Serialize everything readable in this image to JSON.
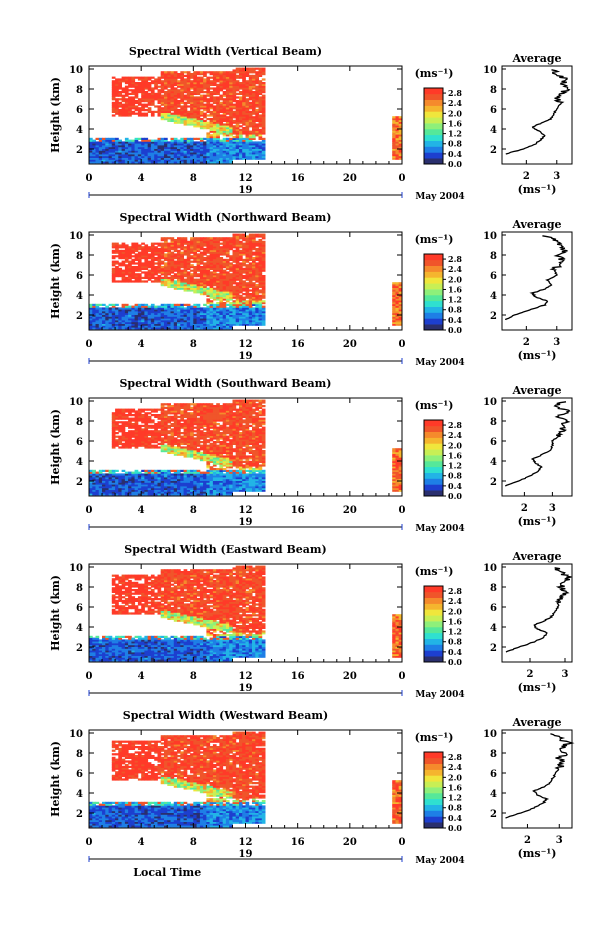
{
  "figure": {
    "colorbar_unit": "(ms⁻¹)",
    "colorbar_ticks": [
      "0.0",
      "0.4",
      "0.8",
      "1.2",
      "1.6",
      "2.0",
      "2.4",
      "2.8"
    ],
    "avg_title": "Average",
    "avg_xlabel": "(ms⁻¹)",
    "date_label": "May 2004",
    "x_axis_day": "19",
    "ylabel": "Height (km)",
    "xlabel_bottom": "Local Time",
    "colormap": [
      "#2a2f6e",
      "#1d3fcf",
      "#1e7fe6",
      "#22b4e6",
      "#2fe0d0",
      "#55e89a",
      "#8ef07a",
      "#c8ef55",
      "#f0e63c",
      "#f5b52e",
      "#f58a2c",
      "#f0552a",
      "#ff3a28"
    ]
  },
  "chart_data": [
    {
      "type": "heatmap",
      "title": "Spectral Width (Vertical Beam)",
      "xlabel": "",
      "ylabel": "Height (km)",
      "x_ticks": [
        "0",
        "4",
        "8",
        "12",
        "16",
        "20",
        "0"
      ],
      "xlim": [
        0,
        24
      ],
      "y_ticks": [
        "2",
        "4",
        "6",
        "8",
        "10"
      ],
      "ylim": [
        0.5,
        10.3
      ],
      "zlim": [
        0,
        3.0
      ],
      "average": {
        "title": "Average",
        "xlabel": "(ms⁻¹)",
        "x_ticks": [
          "2",
          "3"
        ],
        "xlim": [
          1.2,
          3.5
        ],
        "y_ticks": [
          "2",
          "4",
          "6",
          "8",
          "10"
        ],
        "ylim": [
          0.5,
          10.3
        ],
        "profile": [
          [
            1.3,
            1.5
          ],
          [
            1.9,
            2.0
          ],
          [
            2.3,
            2.5
          ],
          [
            2.5,
            3.0
          ],
          [
            2.6,
            3.4
          ],
          [
            2.4,
            3.8
          ],
          [
            2.2,
            4.2
          ],
          [
            2.5,
            4.6
          ],
          [
            2.8,
            5.0
          ],
          [
            2.9,
            5.5
          ],
          [
            3.0,
            6.0
          ],
          [
            3.1,
            6.5
          ],
          [
            3.0,
            7.0
          ],
          [
            3.2,
            7.5
          ],
          [
            3.3,
            8.0
          ],
          [
            3.2,
            8.5
          ],
          [
            3.3,
            9.0
          ],
          [
            3.0,
            9.5
          ],
          [
            2.9,
            10.0
          ]
        ]
      }
    },
    {
      "type": "heatmap",
      "title": "Spectral Width (Northward Beam)",
      "xlabel": "",
      "ylabel": "Height (km)",
      "x_ticks": [
        "0",
        "4",
        "8",
        "12",
        "16",
        "20",
        "0"
      ],
      "xlim": [
        0,
        24
      ],
      "y_ticks": [
        "2",
        "4",
        "6",
        "8",
        "10"
      ],
      "ylim": [
        0.5,
        10.3
      ],
      "zlim": [
        0,
        3.0
      ],
      "average": {
        "title": "Average",
        "xlabel": "(ms⁻¹)",
        "x_ticks": [
          "2",
          "3"
        ],
        "xlim": [
          1.2,
          3.5
        ],
        "y_ticks": [
          "2",
          "4",
          "6",
          "8",
          "10"
        ],
        "ylim": [
          0.5,
          10.3
        ],
        "profile": [
          [
            1.3,
            1.5
          ],
          [
            1.6,
            2.0
          ],
          [
            2.1,
            2.5
          ],
          [
            2.6,
            3.0
          ],
          [
            2.7,
            3.4
          ],
          [
            2.3,
            3.8
          ],
          [
            2.2,
            4.2
          ],
          [
            2.6,
            4.6
          ],
          [
            2.8,
            5.0
          ],
          [
            2.7,
            5.5
          ],
          [
            3.0,
            6.0
          ],
          [
            2.9,
            6.5
          ],
          [
            3.1,
            7.0
          ],
          [
            3.2,
            7.5
          ],
          [
            3.0,
            8.0
          ],
          [
            3.3,
            8.5
          ],
          [
            3.1,
            9.0
          ],
          [
            2.9,
            9.5
          ],
          [
            2.6,
            10.0
          ]
        ]
      }
    },
    {
      "type": "heatmap",
      "title": "Spectral Width (Southward Beam)",
      "xlabel": "",
      "ylabel": "Height (km)",
      "x_ticks": [
        "0",
        "4",
        "8",
        "12",
        "16",
        "20",
        "0"
      ],
      "xlim": [
        0,
        24
      ],
      "y_ticks": [
        "2",
        "4",
        "6",
        "8",
        "10"
      ],
      "ylim": [
        0.5,
        10.3
      ],
      "zlim": [
        0,
        3.0
      ],
      "average": {
        "title": "Average",
        "xlabel": "(ms⁻¹)",
        "x_ticks": [
          "2",
          "3"
        ],
        "xlim": [
          1.2,
          3.7
        ],
        "y_ticks": [
          "2",
          "4",
          "6",
          "8",
          "10"
        ],
        "ylim": [
          0.5,
          10.3
        ],
        "profile": [
          [
            1.3,
            1.5
          ],
          [
            1.8,
            2.0
          ],
          [
            2.2,
            2.5
          ],
          [
            2.5,
            3.0
          ],
          [
            2.6,
            3.4
          ],
          [
            2.4,
            3.8
          ],
          [
            2.3,
            4.2
          ],
          [
            2.6,
            4.6
          ],
          [
            2.9,
            5.0
          ],
          [
            3.0,
            5.5
          ],
          [
            3.0,
            6.0
          ],
          [
            3.2,
            6.5
          ],
          [
            3.4,
            7.0
          ],
          [
            3.3,
            7.5
          ],
          [
            3.5,
            8.0
          ],
          [
            3.2,
            8.5
          ],
          [
            3.6,
            9.0
          ],
          [
            3.0,
            9.5
          ],
          [
            3.5,
            10.0
          ]
        ]
      }
    },
    {
      "type": "heatmap",
      "title": "Spectral Width (Eastward Beam)",
      "xlabel": "",
      "ylabel": "Height (km)",
      "x_ticks": [
        "0",
        "4",
        "8",
        "12",
        "16",
        "20",
        "0"
      ],
      "xlim": [
        0,
        24
      ],
      "y_ticks": [
        "2",
        "4",
        "6",
        "8",
        "10"
      ],
      "ylim": [
        0.5,
        10.3
      ],
      "zlim": [
        0,
        3.0
      ],
      "average": {
        "title": "Average",
        "xlabel": "(ms⁻¹)",
        "x_ticks": [
          "2",
          "3"
        ],
        "xlim": [
          1.2,
          3.2
        ],
        "y_ticks": [
          "2",
          "4",
          "6",
          "8",
          "10"
        ],
        "ylim": [
          0.5,
          10.3
        ],
        "profile": [
          [
            1.3,
            1.5
          ],
          [
            1.7,
            2.0
          ],
          [
            2.1,
            2.5
          ],
          [
            2.4,
            3.0
          ],
          [
            2.5,
            3.4
          ],
          [
            2.2,
            3.8
          ],
          [
            2.1,
            4.2
          ],
          [
            2.4,
            4.6
          ],
          [
            2.6,
            5.0
          ],
          [
            2.7,
            5.5
          ],
          [
            2.8,
            6.0
          ],
          [
            2.8,
            6.5
          ],
          [
            2.9,
            7.0
          ],
          [
            3.0,
            7.5
          ],
          [
            2.9,
            8.0
          ],
          [
            3.0,
            8.5
          ],
          [
            3.1,
            9.0
          ],
          [
            2.9,
            9.5
          ],
          [
            2.7,
            10.0
          ]
        ]
      }
    },
    {
      "type": "heatmap",
      "title": "Spectral Width (Westward Beam)",
      "xlabel": "Local Time",
      "ylabel": "Height (km)",
      "x_ticks": [
        "0",
        "4",
        "8",
        "12",
        "16",
        "20",
        "0"
      ],
      "xlim": [
        0,
        24
      ],
      "y_ticks": [
        "2",
        "4",
        "6",
        "8",
        "10"
      ],
      "ylim": [
        0.5,
        10.3
      ],
      "zlim": [
        0,
        3.0
      ],
      "average": {
        "title": "Average",
        "xlabel": "(ms⁻¹)",
        "x_ticks": [
          "2",
          "3"
        ],
        "xlim": [
          1.2,
          3.4
        ],
        "y_ticks": [
          "2",
          "4",
          "6",
          "8",
          "10"
        ],
        "ylim": [
          0.5,
          10.3
        ],
        "profile": [
          [
            1.3,
            1.5
          ],
          [
            1.8,
            2.0
          ],
          [
            2.2,
            2.5
          ],
          [
            2.5,
            3.0
          ],
          [
            2.6,
            3.4
          ],
          [
            2.3,
            3.8
          ],
          [
            2.2,
            4.2
          ],
          [
            2.5,
            4.6
          ],
          [
            2.7,
            5.0
          ],
          [
            2.8,
            5.5
          ],
          [
            2.9,
            6.0
          ],
          [
            3.0,
            6.5
          ],
          [
            3.1,
            7.0
          ],
          [
            3.0,
            7.5
          ],
          [
            3.2,
            8.0
          ],
          [
            3.1,
            8.5
          ],
          [
            3.3,
            9.0
          ],
          [
            3.0,
            9.5
          ],
          [
            2.8,
            10.0
          ]
        ]
      }
    }
  ]
}
